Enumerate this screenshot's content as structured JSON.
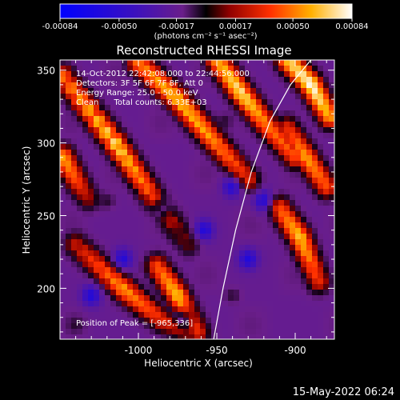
{
  "colorbar": {
    "ticks": [
      "-0.00084",
      "-0.00050",
      "-0.00017",
      "0.00017",
      "0.00050",
      "0.00084"
    ],
    "tick_values": [
      -0.00084,
      -0.0005,
      -0.00017,
      0.00017,
      0.0005,
      0.00084
    ],
    "unit_label": "(photons cm⁻² s⁻¹ asec⁻²)"
  },
  "title": "Reconstructed RHESSI Image",
  "info_lines": [
    "14-Oct-2012 22:42:08.000 to 22:44:56.000",
    "Detectors: 3F 5F 6F 7F 8F, Att 0",
    "Energy Range: 25.0 - 50.0 keV",
    "Clean      Total counts: 6.33E+03"
  ],
  "peak_label": "Position of Peak = [-965,336]",
  "timestamp": "15-May-2022 06:24",
  "colors": {
    "background": "#000000",
    "axes": "#ffffff"
  },
  "chart_data": {
    "type": "heatmap",
    "title": "Reconstructed RHESSI Image",
    "xlabel": "Heliocentric X (arcsec)",
    "ylabel": "Heliocentric Y (arcsec)",
    "xlim": [
      -1050,
      -875
    ],
    "ylim": [
      165,
      357
    ],
    "xticks": [
      -1000,
      -950,
      -900
    ],
    "yticks": [
      200,
      250,
      300,
      350
    ],
    "xtick_labels": [
      "-1000",
      "-950",
      "-900"
    ],
    "ytick_labels": [
      "200",
      "250",
      "300",
      "350"
    ],
    "colorbar_range": [
      -0.00084,
      0.00084
    ],
    "colormap": "blue-purple-red-yellow-white",
    "limb_curve": {
      "x": [
        -952,
        -946,
        -938,
        -928,
        -916,
        -903,
        -890
      ],
      "y": [
        165,
        200,
        240,
        280,
        315,
        340,
        357
      ]
    },
    "stripes": [
      {
        "x": [
          -1048,
          -1015,
          -990,
          -968
        ],
        "y": [
          345,
          300,
          262,
          230
        ],
        "intensity": [
          0.8,
          0.95,
          0.75,
          0.55
        ]
      },
      {
        "x": [
          -1040,
          -1010,
          -985,
          -960
        ],
        "y": [
          230,
          200,
          178,
          165
        ],
        "intensity": [
          0.65,
          0.85,
          0.7,
          0.55
        ]
      },
      {
        "x": [
          -1000,
          -975,
          -955,
          -930
        ],
        "y": [
          355,
          330,
          305,
          275
        ],
        "intensity": [
          0.8,
          0.9,
          0.85,
          0.7
        ]
      },
      {
        "x": [
          -950,
          -935,
          -918,
          -900
        ],
        "y": [
          357,
          335,
          312,
          290
        ],
        "intensity": [
          0.85,
          0.95,
          0.8,
          0.75
        ]
      },
      {
        "x": [
          -905,
          -890,
          -878
        ],
        "y": [
          357,
          340,
          318
        ],
        "intensity": [
          0.9,
          1.0,
          0.85
        ]
      },
      {
        "x": [
          -910,
          -897,
          -885
        ],
        "y": [
          255,
          235,
          205
        ],
        "intensity": [
          0.75,
          0.9,
          0.7
        ]
      },
      {
        "x": [
          -905,
          -893,
          -880
        ],
        "y": [
          310,
          290,
          270
        ],
        "intensity": [
          0.7,
          0.85,
          0.75
        ]
      },
      {
        "x": [
          -988,
          -975,
          -962
        ],
        "y": [
          215,
          195,
          170
        ],
        "intensity": [
          0.75,
          0.9,
          0.7
        ]
      },
      {
        "x": [
          -1048,
          -1040,
          -1032
        ],
        "y": [
          290,
          275,
          262
        ],
        "intensity": [
          0.85,
          0.75,
          0.6
        ]
      }
    ],
    "blue_spots": [
      {
        "x": -985,
        "y": 255
      },
      {
        "x": -958,
        "y": 240
      },
      {
        "x": -1030,
        "y": 195
      },
      {
        "x": -930,
        "y": 220
      },
      {
        "x": -940,
        "y": 270
      },
      {
        "x": -1010,
        "y": 220
      },
      {
        "x": -920,
        "y": 260
      },
      {
        "x": -970,
        "y": 180
      }
    ],
    "dark_spots": [
      {
        "x": -975,
        "y": 238
      },
      {
        "x": -945,
        "y": 315
      },
      {
        "x": -1020,
        "y": 260
      },
      {
        "x": -940,
        "y": 195
      },
      {
        "x": -1040,
        "y": 175
      }
    ]
  }
}
